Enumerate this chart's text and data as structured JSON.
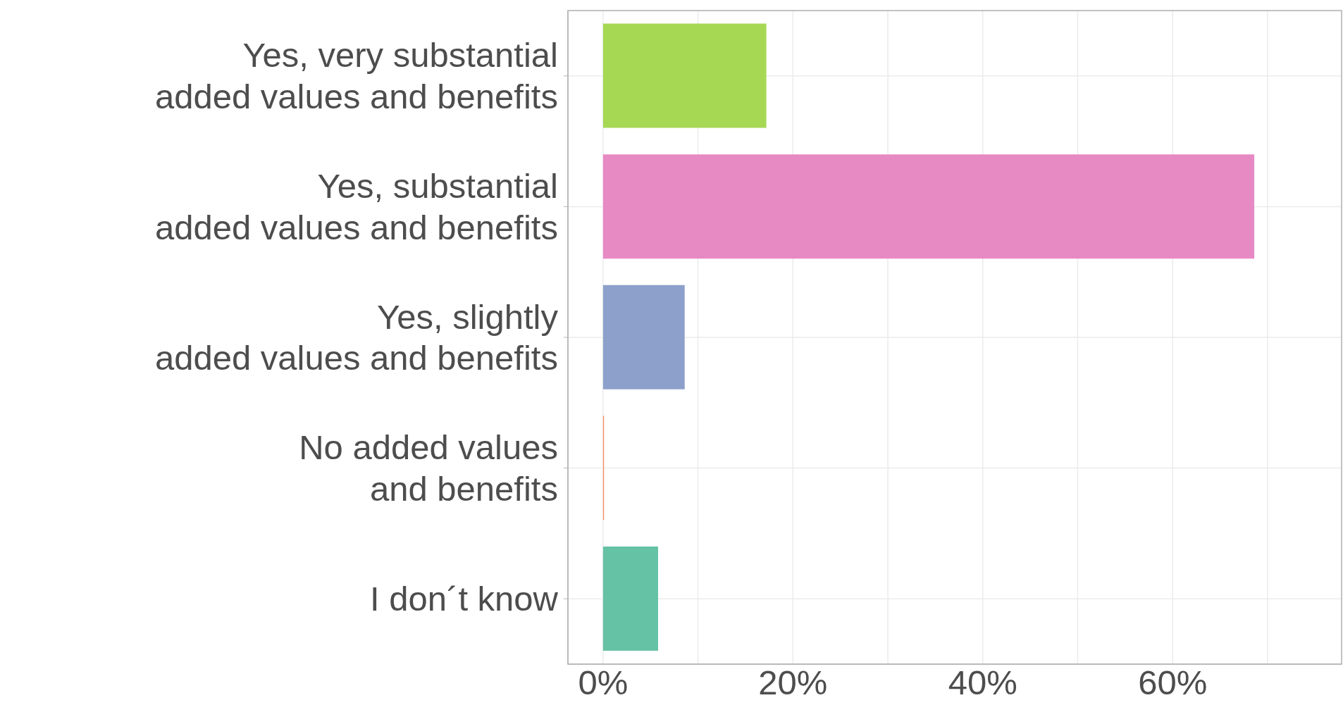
{
  "chart_data": {
    "type": "bar",
    "orientation": "horizontal",
    "categories": [
      "Yes, very substantial\nadded values and benefits",
      "Yes, substantial\nadded values and benefits",
      "Yes, slightly\nadded values and benefits",
      "No added values\nand benefits",
      "I don´t know"
    ],
    "values": [
      17.2,
      68.6,
      8.6,
      0.1,
      5.8
    ],
    "colors": [
      "#a6d854",
      "#e78ac3",
      "#8da0cb",
      "#fc8d62",
      "#66c2a5"
    ],
    "xlim": [
      -3.7,
      77.8
    ],
    "xticks": [
      {
        "value": 0,
        "label": "0%"
      },
      {
        "value": 10,
        "label": null
      },
      {
        "value": 20,
        "label": "20%"
      },
      {
        "value": 30,
        "label": null
      },
      {
        "value": 40,
        "label": "40%"
      },
      {
        "value": 50,
        "label": null
      },
      {
        "value": 60,
        "label": "60%"
      },
      {
        "value": 70,
        "label": null
      }
    ],
    "grid": true
  }
}
